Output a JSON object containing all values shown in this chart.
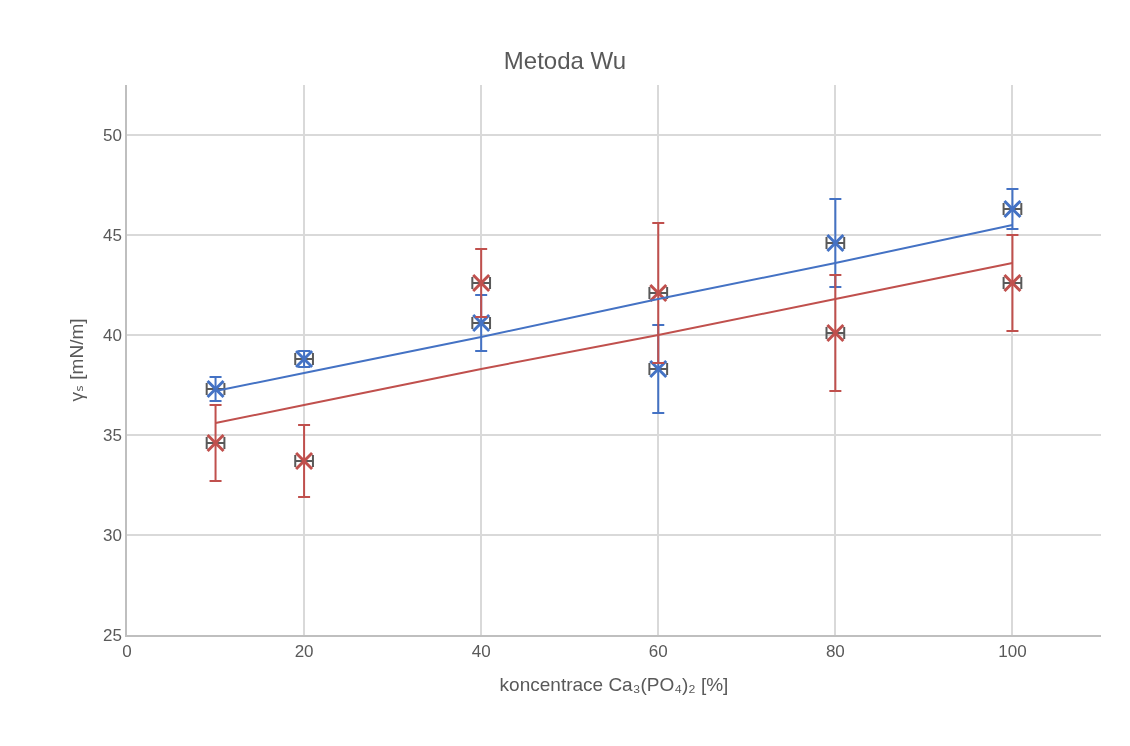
{
  "chart_data": {
    "type": "scatter",
    "title": "Metoda Wu",
    "xlabel": "koncentrace Ca₃(PO₄)₂ [%]",
    "ylabel": "γₛ [mN/m]",
    "x": [
      10,
      20,
      40,
      60,
      80,
      100
    ],
    "series": [
      {
        "marker": "cross",
        "color": "#4472c4",
        "values": [
          37.3,
          38.8,
          40.6,
          38.3,
          44.6,
          46.3
        ],
        "errors": [
          0.6,
          0.4,
          1.4,
          2.2,
          2.2,
          1.0
        ],
        "xerrors": [
          1,
          1,
          1,
          1,
          1,
          1
        ]
      },
      {
        "marker": "cross",
        "color": "#c0504d",
        "values": [
          34.6,
          33.7,
          42.6,
          42.1,
          40.1,
          42.6
        ],
        "errors": [
          1.9,
          1.8,
          1.7,
          3.5,
          2.9,
          2.4
        ],
        "xerrors": [
          1,
          1,
          1,
          1,
          1,
          1
        ]
      },
      {
        "type": "line",
        "color": "#4472c4",
        "values": [
          37.2,
          38.1,
          39.9,
          41.8,
          43.6,
          45.5
        ]
      },
      {
        "type": "line",
        "color": "#c0504d",
        "values": [
          35.6,
          36.5,
          38.3,
          40.0,
          41.8,
          43.6
        ]
      }
    ],
    "xlim": [
      0,
      110
    ],
    "xticks": [
      0,
      20,
      40,
      60,
      80,
      100
    ],
    "ylim": [
      25,
      52.5
    ],
    "yticks": [
      25,
      30,
      35,
      40,
      45,
      50
    ],
    "grid": true,
    "legend": false,
    "line_style": "solid"
  }
}
